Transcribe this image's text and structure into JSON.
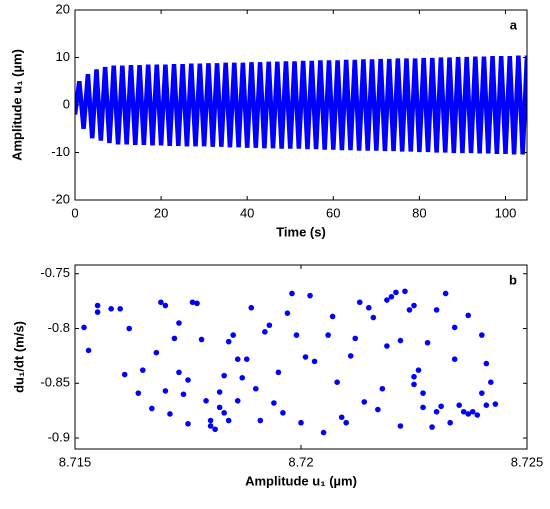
{
  "chart_data": [
    {
      "type": "line",
      "xlabel": "Time (s)",
      "ylabel": "Amplitude u₁ (µm)",
      "annotation": "a",
      "xlim": [
        0,
        105
      ],
      "ylim": [
        -20,
        20
      ],
      "xticks": [
        0,
        20,
        40,
        60,
        80,
        100
      ],
      "yticks": [
        -20,
        -10,
        0,
        10,
        20
      ],
      "grid": false,
      "x": [
        0,
        1,
        2,
        3,
        4,
        5,
        6,
        7,
        8,
        9,
        10,
        11,
        12,
        13,
        14,
        15,
        16,
        17,
        18,
        19,
        20,
        21,
        22,
        23,
        24,
        25,
        26,
        27,
        28,
        29,
        30,
        31,
        32,
        33,
        34,
        35,
        36,
        37,
        38,
        39,
        40,
        41,
        42,
        43,
        44,
        45,
        46,
        47,
        48,
        49,
        50,
        51,
        52,
        53,
        54,
        55,
        56,
        57,
        58,
        59,
        60,
        61,
        62,
        63,
        64,
        65,
        66,
        67,
        68,
        69,
        70,
        71,
        72,
        73,
        74,
        75,
        76,
        77,
        78,
        79,
        80,
        81,
        82,
        83,
        84,
        85,
        86,
        87,
        88,
        89,
        90,
        91,
        92,
        93,
        94,
        95,
        96,
        97,
        98,
        99,
        100,
        101,
        102,
        103,
        104,
        105
      ],
      "series": [
        {
          "name": "u1",
          "color": "#0000ff",
          "values": [
            -2,
            5,
            -5,
            6.5,
            -7,
            7.5,
            -7.5,
            8,
            -8,
            8.3,
            -8.3,
            8.3,
            -8.3,
            8.4,
            -8.4,
            8.4,
            -8.4,
            8.5,
            -8.5,
            8.5,
            -8.5,
            8.5,
            -8.6,
            8.6,
            -8.6,
            8.6,
            -8.7,
            8.7,
            -8.7,
            8.7,
            -8.7,
            8.8,
            -8.8,
            8.8,
            -8.8,
            8.9,
            -8.9,
            8.9,
            -8.9,
            8.9,
            -9.0,
            9.0,
            -9.0,
            9.0,
            -9.1,
            9.1,
            -9.1,
            9.1,
            -9.2,
            9.2,
            -9.2,
            9.2,
            -9.2,
            9.3,
            -9.3,
            9.3,
            -9.3,
            9.4,
            -9.4,
            9.4,
            -9.4,
            9.4,
            -9.5,
            9.5,
            -9.5,
            9.5,
            -9.6,
            9.6,
            -9.6,
            9.6,
            -9.6,
            9.7,
            -9.7,
            9.7,
            -9.7,
            9.8,
            -9.8,
            9.8,
            -9.8,
            9.8,
            -9.9,
            9.9,
            -9.9,
            9.9,
            -10.0,
            10.0,
            -10.0,
            10.0,
            -10.1,
            10.1,
            -10.1,
            10.1,
            -10.1,
            10.2,
            -10.2,
            10.2,
            -10.2,
            10.3,
            -10.3,
            10.3,
            -10.3,
            10.3,
            -10.4,
            10.4,
            -10.4,
            10.4
          ]
        }
      ]
    },
    {
      "type": "scatter",
      "xlabel": "Amplitude u₁ (µm)",
      "ylabel": "du₁/dt (m/s)",
      "annotation": "b",
      "xlim": [
        8.715,
        8.725
      ],
      "ylim": [
        -0.91,
        -0.742
      ],
      "xticks": [
        8.715,
        8.72,
        8.725
      ],
      "yticks": [
        -0.9,
        -0.85,
        -0.8,
        -0.75
      ],
      "grid": false,
      "series": [
        {
          "name": "points",
          "color": "#0000ff",
          "x": [
            8.7152,
            8.7153,
            8.7155,
            8.7155,
            8.7158,
            8.716,
            8.7161,
            8.7162,
            8.7164,
            8.7165,
            8.7167,
            8.7168,
            8.7169,
            8.717,
            8.717,
            8.7171,
            8.7172,
            8.7173,
            8.7173,
            8.7174,
            8.7175,
            8.7175,
            8.7176,
            8.7177,
            8.7178,
            8.7179,
            8.718,
            8.718,
            8.7181,
            8.7182,
            8.7182,
            8.7183,
            8.7183,
            8.7184,
            8.7184,
            8.7185,
            8.7186,
            8.7186,
            8.7187,
            8.7188,
            8.7189,
            8.719,
            8.7191,
            8.7192,
            8.7193,
            8.7194,
            8.7195,
            8.7196,
            8.7197,
            8.7198,
            8.7199,
            8.72,
            8.7201,
            8.7202,
            8.7203,
            8.7205,
            8.7206,
            8.7207,
            8.7208,
            8.7209,
            8.721,
            8.7211,
            8.7212,
            8.7213,
            8.7214,
            8.7215,
            8.7216,
            8.7217,
            8.7218,
            8.7219,
            8.7219,
            8.722,
            8.7221,
            8.7222,
            8.7222,
            8.7223,
            8.7224,
            8.7225,
            8.7225,
            8.7225,
            8.7226,
            8.7227,
            8.7227,
            8.7228,
            8.7229,
            8.723,
            8.723,
            8.7231,
            8.7232,
            8.7233,
            8.7234,
            8.7234,
            8.7235,
            8.7236,
            8.7237,
            8.7237,
            8.7238,
            8.7239,
            8.724,
            8.724,
            8.7241,
            8.7241,
            8.7242,
            8.7243
          ],
          "values": [
            -0.799,
            -0.82,
            -0.779,
            -0.785,
            -0.782,
            -0.782,
            -0.842,
            -0.8,
            -0.859,
            -0.838,
            -0.873,
            -0.822,
            -0.776,
            -0.779,
            -0.857,
            -0.878,
            -0.809,
            -0.795,
            -0.84,
            -0.86,
            -0.847,
            -0.887,
            -0.776,
            -0.777,
            -0.81,
            -0.866,
            -0.884,
            -0.889,
            -0.892,
            -0.858,
            -0.872,
            -0.843,
            -0.877,
            -0.812,
            -0.884,
            -0.806,
            -0.828,
            -0.866,
            -0.845,
            -0.828,
            -0.781,
            -0.855,
            -0.884,
            -0.803,
            -0.797,
            -0.868,
            -0.84,
            -0.877,
            -0.786,
            -0.768,
            -0.806,
            -0.886,
            -0.826,
            -0.77,
            -0.83,
            -0.895,
            -0.806,
            -0.789,
            -0.849,
            -0.881,
            -0.886,
            -0.825,
            -0.809,
            -0.776,
            -0.867,
            -0.781,
            -0.79,
            -0.874,
            -0.855,
            -0.816,
            -0.774,
            -0.771,
            -0.767,
            -0.811,
            -0.889,
            -0.766,
            -0.783,
            -0.779,
            -0.844,
            -0.851,
            -0.838,
            -0.859,
            -0.872,
            -0.813,
            -0.89,
            -0.783,
            -0.876,
            -0.871,
            -0.768,
            -0.886,
            -0.799,
            -0.828,
            -0.87,
            -0.876,
            -0.788,
            -0.878,
            -0.876,
            -0.879,
            -0.806,
            -0.859,
            -0.832,
            -0.87,
            -0.849,
            -0.869
          ]
        }
      ]
    }
  ]
}
